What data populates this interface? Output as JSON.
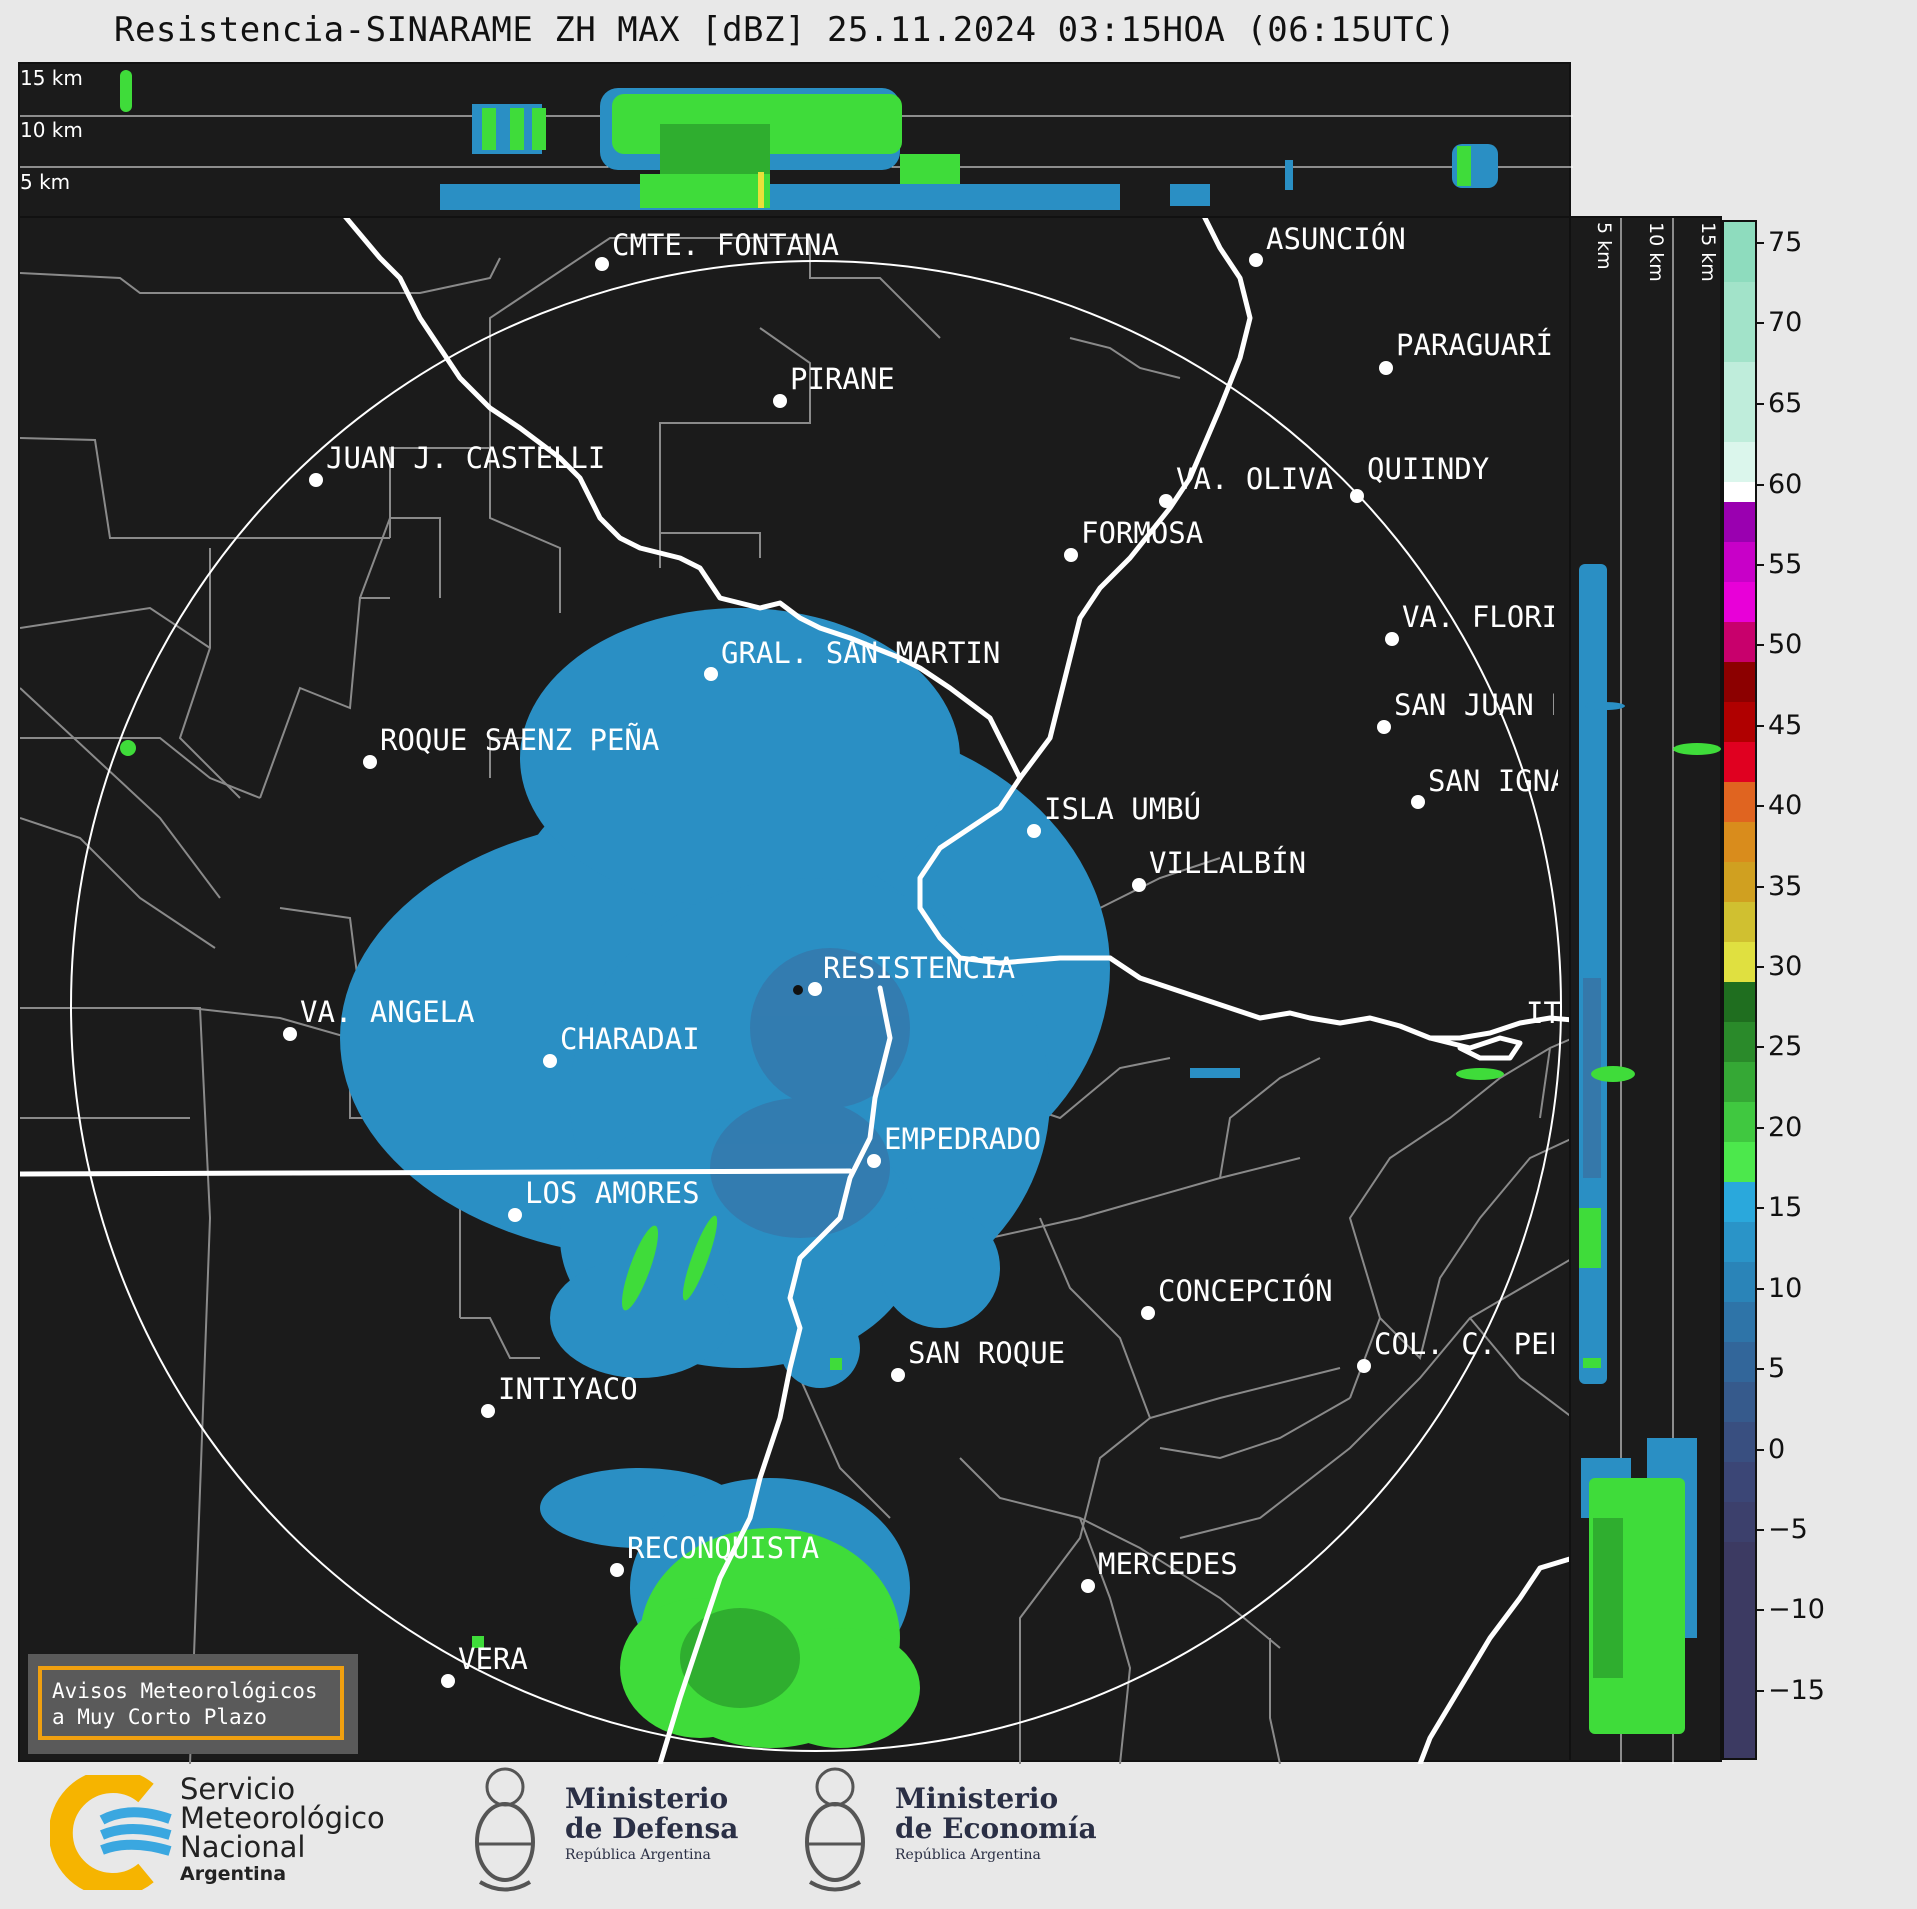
{
  "title": "Resistencia-SINARAME ZH MAX [dBZ] 25.11.2024 03:15HOA (06:15UTC)",
  "top_panel": {
    "height_labels": [
      "15 km",
      "10 km",
      "5 km"
    ]
  },
  "side_panel": {
    "height_labels": [
      "5 km",
      "10 km",
      "15 km"
    ]
  },
  "colorbar": {
    "ticks": [
      "75",
      "70",
      "65",
      "60",
      "55",
      "50",
      "45",
      "40",
      "35",
      "30",
      "25",
      "20",
      "15",
      "10",
      "5",
      "0",
      "−5",
      "−10",
      "−15"
    ],
    "range": [
      -20,
      77
    ],
    "unit": "dBZ"
  },
  "cities": [
    {
      "name": "CMTE. FONTANA"
    },
    {
      "name": "ASUNCIÓN"
    },
    {
      "name": "PARAGUARÍ"
    },
    {
      "name": "PIRANE"
    },
    {
      "name": "JUAN J. CASTELLI"
    },
    {
      "name": "VA. OLIVA"
    },
    {
      "name": "QUIINDY"
    },
    {
      "name": "FORMOSA"
    },
    {
      "name": "VA. FLORI"
    },
    {
      "name": "GRAL. SAN MARTIN"
    },
    {
      "name": "SAN JUAN B"
    },
    {
      "name": "ROQUE SAENZ PEÑA"
    },
    {
      "name": "SAN IGNA"
    },
    {
      "name": "ISLA UMBÚ"
    },
    {
      "name": "VILLALBÍN"
    },
    {
      "name": "RESISTENCIA"
    },
    {
      "name": "VA. ANGELA"
    },
    {
      "name": "CHARADAI"
    },
    {
      "name": "IT"
    },
    {
      "name": "EMPEDRADO"
    },
    {
      "name": "LOS AMORES"
    },
    {
      "name": "CONCEPCIÓN"
    },
    {
      "name": "SAN ROQUE"
    },
    {
      "name": "COL. C. PEL"
    },
    {
      "name": "INTIYACO"
    },
    {
      "name": "RECONQUISTA"
    },
    {
      "name": "MERCEDES"
    },
    {
      "name": "VERA"
    }
  ],
  "warning": {
    "line1": "Avisos Meteorológicos",
    "line2": "a Muy Corto Plazo"
  },
  "logos": {
    "smn": {
      "line1": "Servicio",
      "line2": "Meteorológico",
      "line3": "Nacional",
      "line4": "Argentina"
    },
    "defensa": {
      "line1": "Ministerio",
      "line2": "de Defensa",
      "line3": "República Argentina"
    },
    "economia": {
      "line1": "Ministerio",
      "line2": "de Economía",
      "line3": "República Argentina"
    }
  },
  "colors": {
    "echo_blue": "#2a8fc4",
    "echo_green": "#3fdc3a",
    "background": "#1b1b1b",
    "rivers": "#ffffff"
  }
}
